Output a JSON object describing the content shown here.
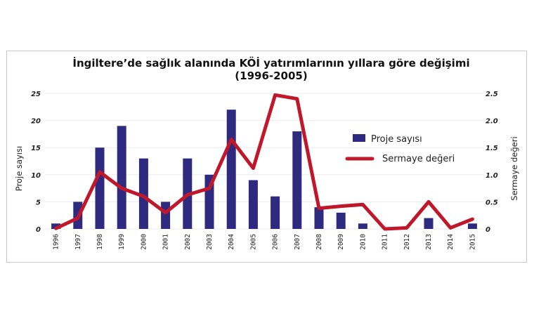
{
  "chart_data": {
    "type": "bar",
    "title": "İngiltere’de sağlık alanında KÖİ yatırımlarının yıllara göre değişimi",
    "subtitle": "(1996-2005)",
    "ylabel": "Proje sayısı",
    "y2label": "Sermaye değeri",
    "categories": [
      "1996",
      "1997",
      "1998",
      "1999",
      "2000",
      "2001",
      "2002",
      "2003",
      "2004",
      "2005",
      "2006",
      "2007",
      "2008",
      "2009",
      "2010",
      "2011",
      "2012",
      "2013",
      "2014",
      "2015"
    ],
    "ylim": [
      0,
      25
    ],
    "y2lim": [
      0,
      2.5
    ],
    "yticks": [
      "0",
      "5",
      "10",
      "15",
      "20",
      "25"
    ],
    "y2ticks": [
      "0",
      "0.5",
      "1.0",
      "1.5",
      "2.0",
      "2.5"
    ],
    "grid": true,
    "legend_position": "right",
    "series": [
      {
        "name": "Proje sayısı",
        "type": "bar",
        "axis": "left",
        "color": "#2e2a7f",
        "values": [
          1,
          5,
          15,
          19,
          13,
          5,
          13,
          10,
          22,
          9,
          6,
          18,
          4,
          3,
          1,
          0,
          0,
          2,
          0,
          1
        ]
      },
      {
        "name": "Sermaye değeri",
        "type": "line",
        "axis": "right",
        "color": "#c0182a",
        "values": [
          0.01,
          0.2,
          1.05,
          0.75,
          0.6,
          0.3,
          0.63,
          0.75,
          1.65,
          1.12,
          2.47,
          2.4,
          0.38,
          0.42,
          0.45,
          0.0,
          0.02,
          0.5,
          0.02,
          0.18
        ]
      }
    ]
  }
}
